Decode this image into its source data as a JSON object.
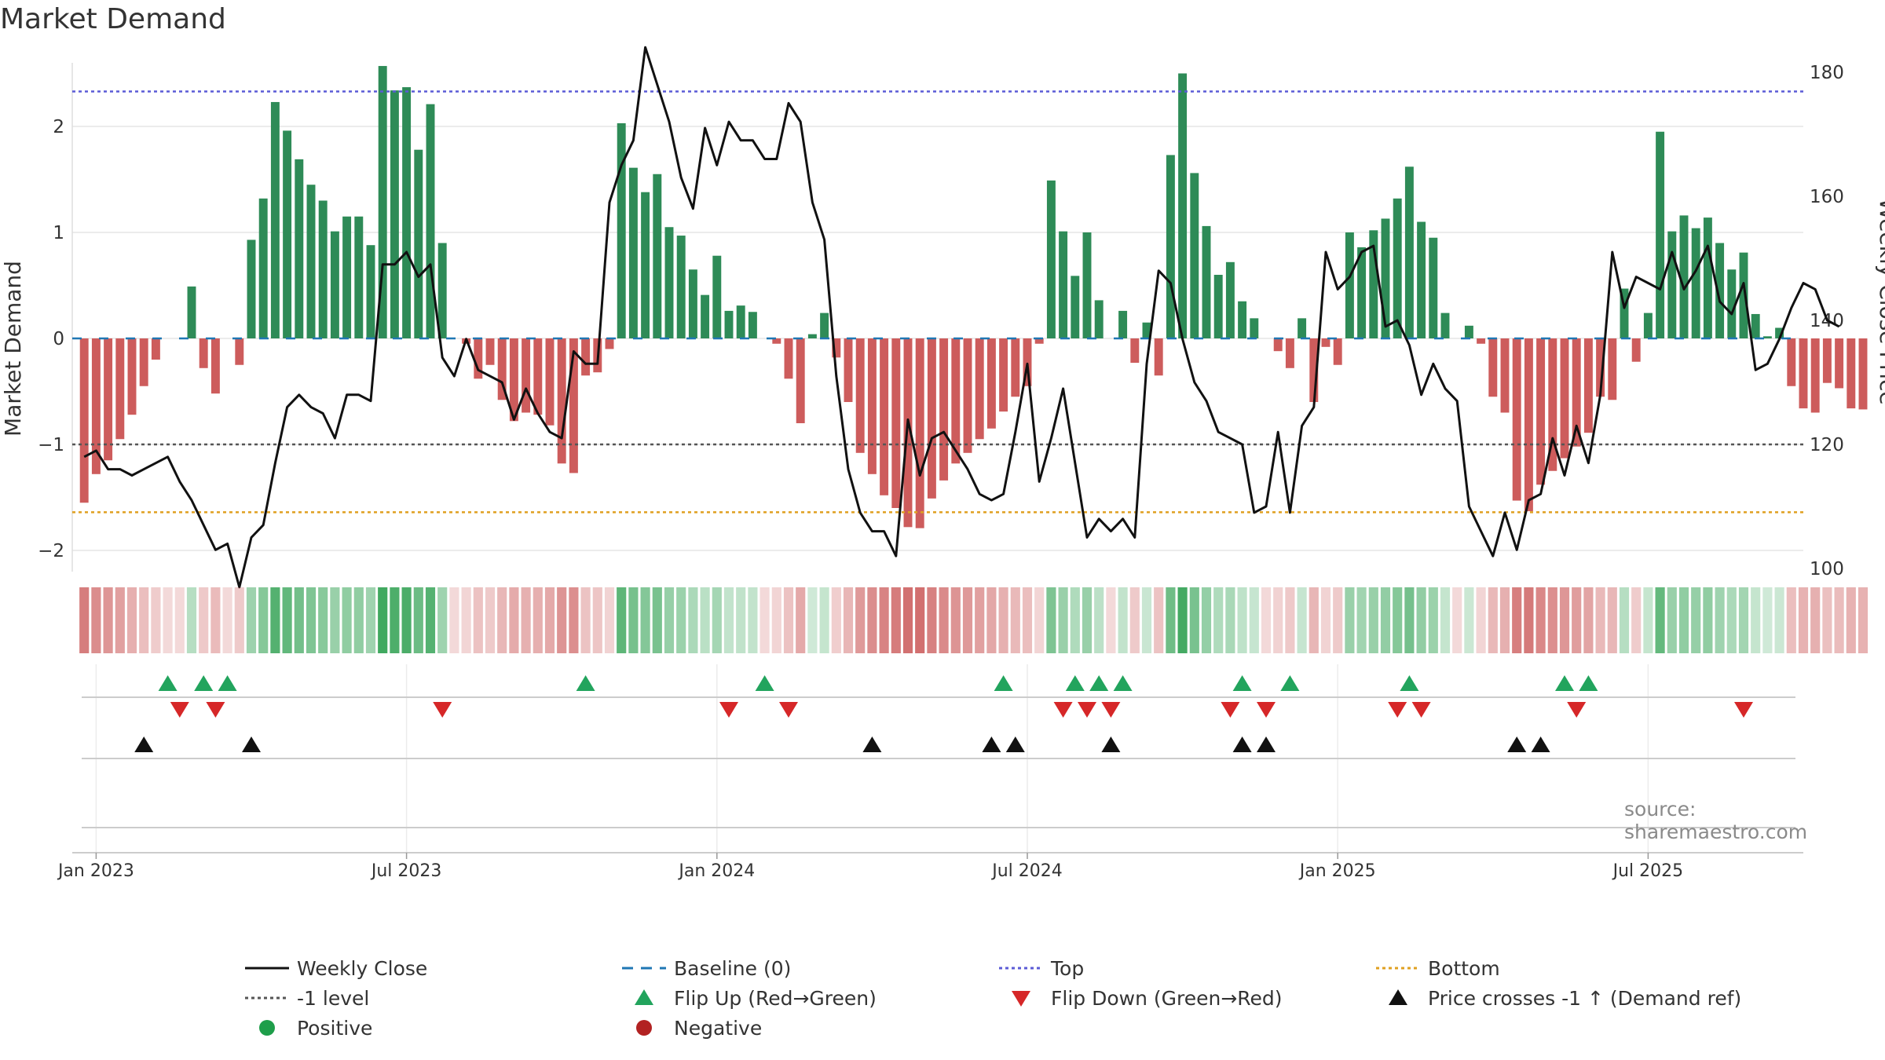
{
  "title": "Market Demand",
  "source": "source: sharemaestro.com",
  "legend": [
    {
      "label": "Weekly Close",
      "symbol": "line",
      "color": "#111111"
    },
    {
      "label": "Baseline (0)",
      "symbol": "dash",
      "color": "#1f77b4"
    },
    {
      "label": "Top",
      "symbol": "dotted",
      "color": "#5b5bd6"
    },
    {
      "label": "Bottom",
      "symbol": "dotted",
      "color": "#e0a020"
    },
    {
      "label": "-1 level",
      "symbol": "dotted",
      "color": "#555555"
    },
    {
      "label": "Flip Up (Red→Green)",
      "symbol": "tri-up",
      "color": "#22a45d"
    },
    {
      "label": "Flip Down (Green→Red)",
      "symbol": "tri-down",
      "color": "#d62728"
    },
    {
      "label": "Price crosses -1 ↑ (Demand ref)",
      "symbol": "tri-up",
      "color": "#111111"
    },
    {
      "label": "Positive",
      "symbol": "dot",
      "color": "#1e9e4a"
    },
    {
      "label": "Negative",
      "symbol": "dot",
      "color": "#b22222"
    }
  ],
  "chart_data": {
    "type": "bar",
    "title": "Market Demand",
    "ylabel": "Market Demand",
    "y2label": "Weekly Close Price",
    "ylim": [
      -2.2,
      2.6
    ],
    "y2lim": [
      99.5,
      181.5
    ],
    "yticks": [
      "−2",
      "−1",
      "0",
      "1",
      "2"
    ],
    "yticks_values": [
      -2,
      -1,
      0,
      1,
      2
    ],
    "y2ticks": [
      "100",
      "120",
      "140",
      "160",
      "180"
    ],
    "y2ticks_values": [
      100,
      120,
      140,
      160,
      180
    ],
    "xlim": [
      -1,
      144
    ],
    "xticks": [
      "Jan 2023",
      "Jul 2023",
      "Jan 2024",
      "Jul 2024",
      "Jan 2025",
      "Jul 2025"
    ],
    "xticks_index": [
      1,
      27,
      53,
      79,
      105,
      131
    ],
    "reference_lines": {
      "baseline": 0,
      "top": 2.33,
      "minus1": -1,
      "bottom": -1.64
    },
    "demand": [
      -1.55,
      -1.28,
      -1.15,
      -0.95,
      -0.72,
      -0.45,
      -0.2,
      0.0,
      0.0,
      0.49,
      -0.28,
      -0.52,
      0.0,
      -0.25,
      0.93,
      1.32,
      2.23,
      1.96,
      1.69,
      1.45,
      1.3,
      1.01,
      1.15,
      1.15,
      0.88,
      2.57,
      2.34,
      2.37,
      1.78,
      2.21,
      0.9,
      0.0,
      -0.05,
      -0.38,
      -0.25,
      -0.58,
      -0.78,
      -0.7,
      -0.72,
      -0.82,
      -1.18,
      -1.27,
      -0.35,
      -0.32,
      -0.1,
      2.03,
      1.61,
      1.38,
      1.55,
      1.05,
      0.97,
      0.65,
      0.41,
      0.78,
      0.26,
      0.31,
      0.25,
      0.0,
      -0.05,
      -0.38,
      -0.8,
      0.04,
      0.24,
      -0.18,
      -0.6,
      -1.08,
      -1.28,
      -1.48,
      -1.6,
      -1.78,
      -1.79,
      -1.51,
      -1.34,
      -1.18,
      -1.08,
      -0.95,
      -0.85,
      -0.69,
      -0.55,
      -0.45,
      -0.05,
      1.49,
      1.01,
      0.59,
      1.0,
      0.36,
      0.0,
      0.26,
      -0.23,
      0.15,
      -0.35,
      1.73,
      2.5,
      1.56,
      1.06,
      0.6,
      0.72,
      0.35,
      0.19,
      0.0,
      -0.12,
      -0.28,
      0.19,
      -0.6,
      -0.08,
      -0.25,
      1.0,
      0.86,
      1.02,
      1.13,
      1.32,
      1.62,
      1.1,
      0.95,
      0.24,
      0.0,
      0.12,
      -0.05,
      -0.55,
      -0.7,
      -1.53,
      -1.63,
      -1.38,
      -1.25,
      -1.13,
      -1.02,
      -0.89,
      -0.55,
      -0.58,
      0.47,
      -0.22,
      0.24,
      1.95,
      1.01,
      1.16,
      1.04,
      1.14,
      0.9,
      0.65,
      0.81,
      0.23,
      0.02,
      0.1,
      -0.45,
      -0.66,
      -0.7,
      -0.42,
      -0.47,
      -0.66,
      -0.67
    ],
    "weekly_close": [
      118,
      119,
      116,
      116,
      115,
      116,
      117,
      118,
      114,
      111,
      107,
      103,
      104,
      97,
      105,
      107,
      117,
      126,
      128,
      126,
      125,
      121,
      128,
      128,
      127,
      149,
      149,
      151,
      147,
      149,
      134,
      131,
      137,
      132,
      131,
      130,
      124,
      129,
      125,
      122,
      121,
      135,
      133,
      133,
      159,
      165,
      169,
      184,
      178,
      172,
      163,
      158,
      171,
      165,
      172,
      169,
      169,
      166,
      166,
      175,
      172,
      159,
      153,
      131,
      116,
      109,
      106,
      106,
      102,
      124,
      115,
      121,
      122,
      119,
      116,
      112,
      111,
      112,
      122,
      133,
      114,
      121,
      129,
      117,
      105,
      108,
      106,
      108,
      105,
      133,
      148,
      146,
      137,
      130,
      127,
      122,
      121,
      120,
      109,
      110,
      122,
      109,
      123,
      126,
      151,
      145,
      147,
      151,
      152,
      139,
      140,
      136,
      128,
      133,
      129,
      127,
      110,
      106,
      102,
      109,
      103,
      111,
      112,
      121,
      115,
      123,
      117,
      128,
      151,
      142,
      147,
      146,
      145,
      151,
      145,
      148,
      152,
      143,
      141,
      146,
      132,
      133,
      137,
      142,
      146,
      145,
      140,
      139
    ],
    "flip_up_index": [
      7,
      10,
      12,
      42,
      57,
      77,
      83,
      85,
      87,
      97,
      101,
      111,
      124,
      126
    ],
    "flip_down_index": [
      8,
      11,
      30,
      54,
      59,
      82,
      84,
      86,
      96,
      99,
      110,
      112,
      125,
      139
    ],
    "price_cross_index": [
      5,
      14,
      66,
      76,
      78,
      86,
      97,
      99,
      120,
      122
    ],
    "series": [
      {
        "name": "Market Demand",
        "values_key": "demand",
        "axis": "left"
      },
      {
        "name": "Weekly Close",
        "values_key": "weekly_close",
        "axis": "right"
      }
    ]
  }
}
